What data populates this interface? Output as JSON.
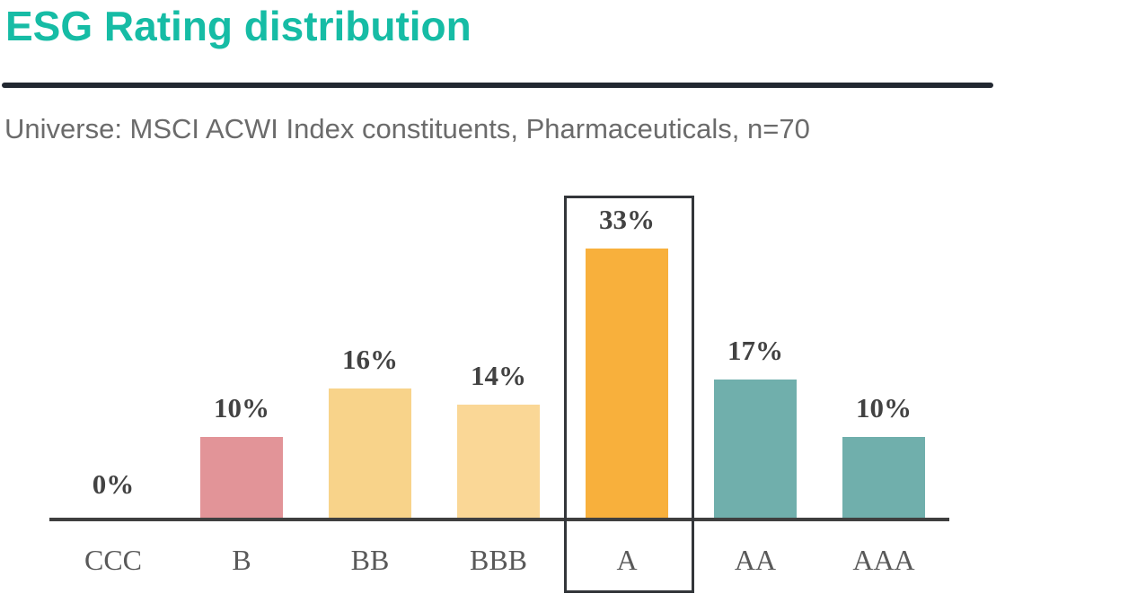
{
  "page": {
    "title": "ESG Rating distribution",
    "subtitle": "Universe: MSCI ACWI Index constituents, Pharmaceuticals, n=70"
  },
  "colors": {
    "title_accent": "#16BCA5",
    "divider": "#222831",
    "axis": "#3F3F3F",
    "value_label": "#424242",
    "category_label": "#595959",
    "highlight_border": "#33363A"
  },
  "chart_data": {
    "type": "bar",
    "title": "ESG Rating distribution",
    "subtitle": "Universe: MSCI ACWI Index constituents, Pharmaceuticals, n=70",
    "categories": [
      "CCC",
      "B",
      "BB",
      "BBB",
      "A",
      "AA",
      "AAA"
    ],
    "values": [
      0,
      10,
      16,
      14,
      33,
      17,
      10
    ],
    "labels": [
      "0%",
      "10%",
      "16%",
      "14%",
      "33%",
      "17%",
      "10%"
    ],
    "bar_colors": [
      "none",
      "#E29498",
      "#F8D38A",
      "#FAD796",
      "#F8B03C",
      "#70AFAC",
      "#70AFAC"
    ],
    "highlighted_category": "A",
    "xlabel": "",
    "ylabel": "",
    "ylim": [
      0,
      35
    ],
    "grid": false,
    "legend": false,
    "data_labels_shown": true
  }
}
